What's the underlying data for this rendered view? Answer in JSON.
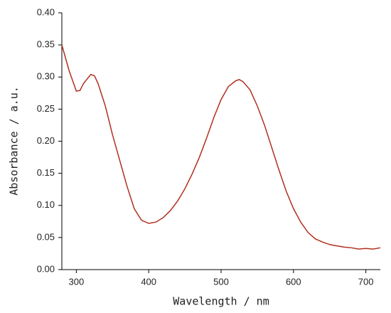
{
  "chart_data": {
    "type": "line",
    "x_label": "Wavelength / nm",
    "y_label": "Absorbance / a.u.",
    "x": [
      280,
      290,
      300,
      305,
      310,
      320,
      325,
      330,
      340,
      350,
      360,
      370,
      380,
      390,
      400,
      410,
      420,
      430,
      440,
      450,
      460,
      470,
      480,
      490,
      500,
      510,
      520,
      525,
      530,
      540,
      550,
      560,
      570,
      580,
      590,
      600,
      610,
      620,
      630,
      640,
      650,
      660,
      670,
      680,
      690,
      700,
      710,
      720
    ],
    "series": [
      {
        "color": "#b03020",
        "values": [
          0.35,
          0.31,
          0.278,
          0.279,
          0.29,
          0.304,
          0.302,
          0.29,
          0.255,
          0.21,
          0.17,
          0.13,
          0.095,
          0.077,
          0.072,
          0.074,
          0.081,
          0.092,
          0.107,
          0.126,
          0.149,
          0.175,
          0.205,
          0.237,
          0.265,
          0.285,
          0.294,
          0.296,
          0.293,
          0.28,
          0.255,
          0.225,
          0.19,
          0.155,
          0.122,
          0.095,
          0.074,
          0.058,
          0.048,
          0.043,
          0.039,
          0.037,
          0.035,
          0.034,
          0.032,
          0.033,
          0.032,
          0.034
        ]
      }
    ],
    "xlim": [
      280,
      720
    ],
    "ylim": [
      0,
      0.4
    ],
    "xticks": [
      300,
      400,
      500,
      600,
      700
    ],
    "yticks": [
      {
        "value": 0,
        "label": "0.00"
      },
      {
        "value": 0.05,
        "label": "0.05"
      },
      {
        "value": 0.1,
        "label": "0.10"
      },
      {
        "value": 0.15,
        "label": "0.15"
      },
      {
        "value": 0.2,
        "label": "0.20"
      },
      {
        "value": 0.25,
        "label": "0.25"
      },
      {
        "value": 0.3,
        "label": "0.30"
      },
      {
        "value": 0.35,
        "label": "0.35"
      },
      {
        "value": 0.4,
        "label": "0.40"
      }
    ],
    "grid": false
  }
}
